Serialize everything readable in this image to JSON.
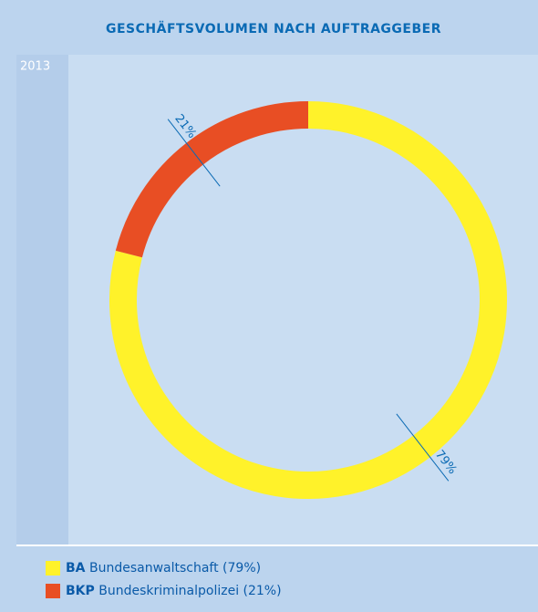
{
  "chart_data": {
    "type": "donut",
    "title": "GESCHÄFTSVOLUMEN NACH AUFTRAGGEBER",
    "subtitle": "2013",
    "categories": [
      "BA",
      "BKP"
    ],
    "legend_descriptions": [
      "Bundesanwaltschaft (79%)",
      "Bundeskriminalpolizei (21%)"
    ],
    "values": [
      79,
      21
    ],
    "value_labels": [
      "79%",
      "21%"
    ],
    "colors": [
      "#fff22a",
      "#e84e24"
    ]
  }
}
